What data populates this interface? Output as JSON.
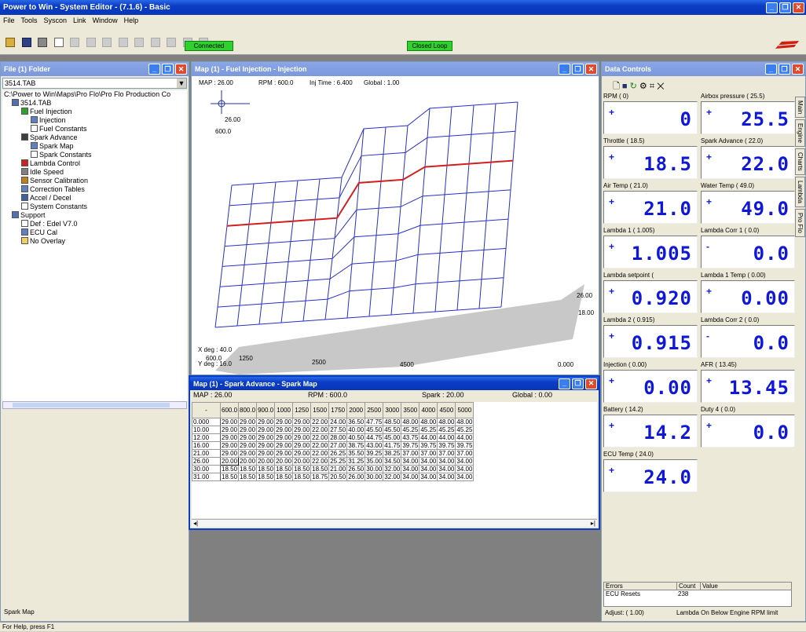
{
  "app": {
    "title": "Power to Win - System Editor - (7.1.6) - Basic"
  },
  "menu": [
    "File",
    "Tools",
    "Syscon",
    "Link",
    "Window",
    "Help"
  ],
  "toolbar": {
    "status1": "Connected",
    "status2": "Closed Loop"
  },
  "file_panel": {
    "title": "File (1) Folder",
    "combo_value": "3514.TAB",
    "path": "C:\\Power to Win\\Maps\\Pro Flo\\Pro Flo Production Co",
    "tree": [
      {
        "label": "3514.TAB",
        "indent": 1,
        "icon": "ecu"
      },
      {
        "label": "Fuel Injection",
        "indent": 2,
        "icon": "fuel"
      },
      {
        "label": "Injection",
        "indent": 3,
        "icon": "map"
      },
      {
        "label": "Fuel Constants",
        "indent": 3,
        "icon": "doc"
      },
      {
        "label": "Spark Advance",
        "indent": 2,
        "icon": "spark"
      },
      {
        "label": "Spark Map",
        "indent": 3,
        "icon": "map"
      },
      {
        "label": "Spark Constants",
        "indent": 3,
        "icon": "doc"
      },
      {
        "label": "Lambda Control",
        "indent": 2,
        "icon": "lambda"
      },
      {
        "label": "Idle Speed",
        "indent": 2,
        "icon": "idle"
      },
      {
        "label": "Sensor Calibration",
        "indent": 2,
        "icon": "sensor"
      },
      {
        "label": "Correction Tables",
        "indent": 2,
        "icon": "table"
      },
      {
        "label": "Accel / Decel",
        "indent": 2,
        "icon": "accel"
      },
      {
        "label": "System Constants",
        "indent": 2,
        "icon": "doc"
      },
      {
        "label": "Support",
        "indent": 1,
        "icon": "ecu"
      },
      {
        "label": "Def : Edel V7.0",
        "indent": 2,
        "icon": "doc"
      },
      {
        "label": "ECU Cal",
        "indent": 2,
        "icon": "table"
      },
      {
        "label": "No Overlay",
        "indent": 2,
        "icon": "folder"
      }
    ],
    "footer": "Spark Map"
  },
  "fuel_map": {
    "title": "Map (1) - Fuel Injection - Injection",
    "map_label": "MAP : 26.00",
    "rpm_label": "RPM : 600.0",
    "inj_label": "Inj Time : 6.400",
    "global_label": "Global : 1.00",
    "cross_val": "26.00",
    "cross_rpm": "600.0",
    "right_top": "26.00",
    "right_mid": "18.00",
    "bottom_zero": "0.000",
    "xdeg": "X deg : 40.0",
    "ydeg": "Y deg : 16.0",
    "x600": "600.0",
    "x1250": "1250",
    "x2500": "2500",
    "x4500": "4500"
  },
  "spark_map": {
    "title": "Map (1) - Spark Advance - Spark Map",
    "map_label": "MAP : 26.00",
    "rpm_label": "RPM : 600.0",
    "spark_label": "Spark : 20.00",
    "global_label": "Global : 0.00",
    "corner": "-",
    "columns": [
      "600.0",
      "800.0",
      "900.0",
      "1000",
      "1250",
      "1500",
      "1750",
      "2000",
      "2500",
      "3000",
      "3500",
      "4000",
      "4500",
      "5000"
    ],
    "rows": [
      {
        "h": "0.000",
        "v": [
          "29.00",
          "29.00",
          "29.00",
          "29.00",
          "29.00",
          "22.00",
          "24.00",
          "36.50",
          "47.75",
          "48.50",
          "48.00",
          "48.00",
          "48.00",
          "48.00"
        ]
      },
      {
        "h": "10.00",
        "v": [
          "29.00",
          "29.00",
          "29.00",
          "29.00",
          "29.00",
          "22.00",
          "27.50",
          "40.00",
          "45.50",
          "45.50",
          "45.25",
          "45.25",
          "45.25",
          "45.25"
        ]
      },
      {
        "h": "12.00",
        "v": [
          "29.00",
          "29.00",
          "29.00",
          "29.00",
          "29.00",
          "22.00",
          "28.00",
          "40.50",
          "44.75",
          "45.00",
          "43.75",
          "44.00",
          "44.00",
          "44.00"
        ]
      },
      {
        "h": "16.00",
        "v": [
          "29.00",
          "29.00",
          "29.00",
          "29.00",
          "29.00",
          "22.00",
          "27.00",
          "38.75",
          "43.00",
          "41.75",
          "39.75",
          "39.75",
          "39.75",
          "39.75"
        ]
      },
      {
        "h": "21.00",
        "v": [
          "29.00",
          "29.00",
          "29.00",
          "29.00",
          "29.00",
          "22.00",
          "26.25",
          "35.50",
          "39.25",
          "38.25",
          "37.00",
          "37.00",
          "37.00",
          "37.00"
        ]
      },
      {
        "h": "26.00",
        "v": [
          "20.00",
          "20.00",
          "20.00",
          "20.00",
          "20.00",
          "22.00",
          "25.25",
          "31.25",
          "35.00",
          "34.50",
          "34.00",
          "34.00",
          "34.00",
          "34.00"
        ]
      },
      {
        "h": "30.00",
        "v": [
          "18.50",
          "18.50",
          "18.50",
          "18.50",
          "18.50",
          "18.50",
          "21.00",
          "26.50",
          "30.00",
          "32.00",
          "34.00",
          "34.00",
          "34.00",
          "34.00"
        ]
      },
      {
        "h": "31.00",
        "v": [
          "18.50",
          "18.50",
          "18.50",
          "18.50",
          "18.50",
          "18.75",
          "20.50",
          "26.00",
          "30.00",
          "32.00",
          "34.00",
          "34.00",
          "34.00",
          "34.00"
        ]
      }
    ]
  },
  "data_controls": {
    "title": "Data Controls",
    "tabs": [
      "Main",
      "Engine",
      "Charts",
      "Lambda",
      "Pro Flo"
    ],
    "gauges": [
      {
        "label": "RPM ( 0)",
        "sign": "+",
        "value": "0"
      },
      {
        "label": "Airbox pressure ( 25.5)",
        "sign": "+",
        "value": "25.5"
      },
      {
        "label": "Throttle ( 18.5)",
        "sign": "+",
        "value": "18.5"
      },
      {
        "label": "Spark Advance ( 22.0)",
        "sign": "+",
        "value": "22.0"
      },
      {
        "label": "Air Temp ( 21.0)",
        "sign": "+",
        "value": "21.0"
      },
      {
        "label": "Water Temp ( 49.0)",
        "sign": "+",
        "value": "49.0"
      },
      {
        "label": "Lambda 1 ( 1.005)",
        "sign": "+",
        "value": "1.005"
      },
      {
        "label": "Lambda Corr 1 ( 0.0)",
        "sign": "-",
        "value": "0.0"
      },
      {
        "label": "Lambda setpoint (",
        "sign": "+",
        "value": "0.920"
      },
      {
        "label": "Lambda 1 Temp ( 0.00)",
        "sign": "+",
        "value": "0.00"
      },
      {
        "label": "Lambda 2 ( 0.915)",
        "sign": "+",
        "value": "0.915"
      },
      {
        "label": "Lambda Corr 2 ( 0.0)",
        "sign": "-",
        "value": "0.0"
      },
      {
        "label": "Injection ( 0.00)",
        "sign": "+",
        "value": "0.00"
      },
      {
        "label": "AFR ( 13.45)",
        "sign": "+",
        "value": "13.45"
      },
      {
        "label": "Battery ( 14.2)",
        "sign": "+",
        "value": "14.2"
      },
      {
        "label": "Duty 4 ( 0.0)",
        "sign": "+",
        "value": "0.0"
      },
      {
        "label": "ECU Temp ( 24.0)",
        "sign": "+",
        "value": "24.0"
      }
    ],
    "errors_header": [
      "Errors",
      "Count",
      "Value"
    ],
    "errors_row": {
      "name": "ECU Resets",
      "count": "238"
    },
    "footer_left": "Adjust: ( 1.00)",
    "footer_right": "Lambda On  Below Engine RPM limit"
  },
  "statusbar": "For Help, press F1"
}
